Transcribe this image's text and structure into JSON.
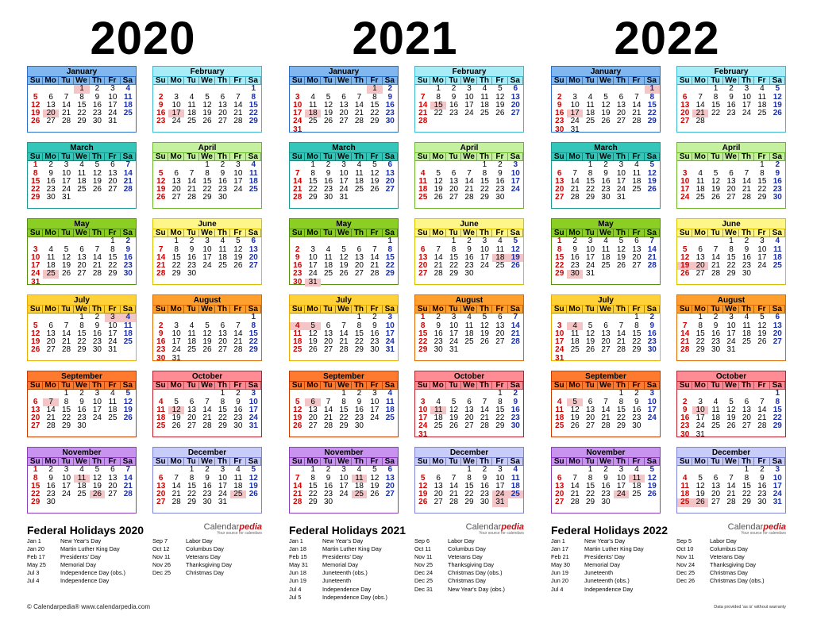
{
  "years": [
    "2020",
    "2021",
    "2022"
  ],
  "weekday_labels": [
    "Su",
    "Mo",
    "Tu",
    "We",
    "Th",
    "Fr",
    "Sa"
  ],
  "month_names": [
    "January",
    "February",
    "March",
    "April",
    "May",
    "June",
    "July",
    "August",
    "September",
    "October",
    "November",
    "December"
  ],
  "theme": [
    {
      "border": "#2b6fc9",
      "head": "#7fb7ee"
    },
    {
      "border": "#3fb8d2",
      "head": "#a8ecf7"
    },
    {
      "border": "#1c9a94",
      "head": "#34c6b8"
    },
    {
      "border": "#6cb52a",
      "head": "#c5f0a0"
    },
    {
      "border": "#559212",
      "head": "#8ccf24"
    },
    {
      "border": "#d8c100",
      "head": "#fff68a"
    },
    {
      "border": "#e8ad00",
      "head": "#ffd23a"
    },
    {
      "border": "#dc6a00",
      "head": "#ff9f2e"
    },
    {
      "border": "#cc3a00",
      "head": "#ff7a2e"
    },
    {
      "border": "#bd1e2a",
      "head": "#ff8c94"
    },
    {
      "border": "#8b3fb8",
      "head": "#c793ef"
    },
    {
      "border": "#7c82d8",
      "head": "#c8ccf8"
    }
  ],
  "calendars": [
    {
      "year": "2020",
      "months": [
        {
          "start": 3,
          "days": 31,
          "holidays": [
            1,
            20
          ]
        },
        {
          "start": 6,
          "days": 29,
          "holidays": [
            17
          ]
        },
        {
          "start": 0,
          "days": 31,
          "holidays": []
        },
        {
          "start": 3,
          "days": 30,
          "holidays": []
        },
        {
          "start": 5,
          "days": 31,
          "holidays": [
            25
          ]
        },
        {
          "start": 1,
          "days": 30,
          "holidays": []
        },
        {
          "start": 3,
          "days": 31,
          "holidays": [
            3,
            4
          ]
        },
        {
          "start": 6,
          "days": 31,
          "holidays": []
        },
        {
          "start": 2,
          "days": 30,
          "holidays": [
            7
          ]
        },
        {
          "start": 4,
          "days": 31,
          "holidays": [
            12
          ]
        },
        {
          "start": 0,
          "days": 30,
          "holidays": [
            11,
            26
          ]
        },
        {
          "start": 2,
          "days": 31,
          "holidays": [
            25
          ]
        }
      ]
    },
    {
      "year": "2021",
      "months": [
        {
          "start": 5,
          "days": 31,
          "holidays": [
            1,
            18
          ]
        },
        {
          "start": 1,
          "days": 28,
          "holidays": [
            15
          ]
        },
        {
          "start": 1,
          "days": 31,
          "holidays": []
        },
        {
          "start": 4,
          "days": 30,
          "holidays": []
        },
        {
          "start": 6,
          "days": 31,
          "holidays": [
            31
          ]
        },
        {
          "start": 2,
          "days": 30,
          "holidays": [
            18,
            19
          ]
        },
        {
          "start": 4,
          "days": 31,
          "holidays": [
            4,
            5
          ]
        },
        {
          "start": 0,
          "days": 31,
          "holidays": []
        },
        {
          "start": 3,
          "days": 30,
          "holidays": [
            6
          ]
        },
        {
          "start": 5,
          "days": 31,
          "holidays": [
            11
          ]
        },
        {
          "start": 1,
          "days": 30,
          "holidays": [
            11,
            25
          ]
        },
        {
          "start": 3,
          "days": 31,
          "holidays": [
            24,
            25,
            31
          ]
        }
      ]
    },
    {
      "year": "2022",
      "months": [
        {
          "start": 6,
          "days": 31,
          "holidays": [
            1,
            17
          ]
        },
        {
          "start": 2,
          "days": 28,
          "holidays": [
            21
          ]
        },
        {
          "start": 2,
          "days": 31,
          "holidays": []
        },
        {
          "start": 5,
          "days": 30,
          "holidays": []
        },
        {
          "start": 0,
          "days": 31,
          "holidays": [
            30
          ]
        },
        {
          "start": 3,
          "days": 30,
          "holidays": [
            19,
            20
          ]
        },
        {
          "start": 5,
          "days": 31,
          "holidays": [
            4
          ]
        },
        {
          "start": 1,
          "days": 31,
          "holidays": []
        },
        {
          "start": 4,
          "days": 30,
          "holidays": [
            5
          ]
        },
        {
          "start": 6,
          "days": 31,
          "holidays": [
            10
          ]
        },
        {
          "start": 2,
          "days": 30,
          "holidays": [
            11,
            24
          ]
        },
        {
          "start": 4,
          "days": 31,
          "holidays": [
            25,
            26
          ]
        }
      ]
    }
  ],
  "federal": [
    {
      "title": "Federal Holidays 2020",
      "left": [
        [
          "Jan 1",
          "New Year's Day"
        ],
        [
          "Jan 20",
          "Martin Luther King Day"
        ],
        [
          "Feb 17",
          "Presidents' Day"
        ],
        [
          "May 25",
          "Memorial Day"
        ],
        [
          "Jul 3",
          "Independence Day (obs.)"
        ],
        [
          "Jul 4",
          "Independence Day"
        ]
      ],
      "right": [
        [
          "Sep 7",
          "Labor Day"
        ],
        [
          "Oct 12",
          "Columbus Day"
        ],
        [
          "Nov 11",
          "Veterans Day"
        ],
        [
          "Nov 26",
          "Thanksgiving Day"
        ],
        [
          "Dec 25",
          "Christmas Day"
        ]
      ]
    },
    {
      "title": "Federal Holidays 2021",
      "left": [
        [
          "Jan 1",
          "New Year's Day"
        ],
        [
          "Jan 18",
          "Martin Luther King Day"
        ],
        [
          "Feb 15",
          "Presidents' Day"
        ],
        [
          "May 31",
          "Memorial Day"
        ],
        [
          "Jun 18",
          "Juneteenth (obs.)"
        ],
        [
          "Jun 19",
          "Juneteenth"
        ],
        [
          "Jul 4",
          "Independence Day"
        ],
        [
          "Jul 5",
          "Independence Day (obs.)"
        ]
      ],
      "right": [
        [
          "Sep 6",
          "Labor Day"
        ],
        [
          "Oct 11",
          "Columbus Day"
        ],
        [
          "Nov 11",
          "Veterans Day"
        ],
        [
          "Nov 25",
          "Thanksgiving Day"
        ],
        [
          "Dec 24",
          "Christmas Day (obs.)"
        ],
        [
          "Dec 25",
          "Christmas Day"
        ],
        [
          "Dec 31",
          "New Year's Day (obs.)"
        ]
      ]
    },
    {
      "title": "Federal Holidays 2022",
      "left": [
        [
          "Jan 1",
          "New Year's Day"
        ],
        [
          "Jan 17",
          "Martin Luther King Day"
        ],
        [
          "Feb 21",
          "Presidents' Day"
        ],
        [
          "May 30",
          "Memorial Day"
        ],
        [
          "Jun 19",
          "Juneteenth"
        ],
        [
          "Jun 20",
          "Juneteenth (obs.)"
        ],
        [
          "Jul 4",
          "Independence Day"
        ]
      ],
      "right": [
        [
          "Sep 5",
          "Labor Day"
        ],
        [
          "Oct 10",
          "Columbus Day"
        ],
        [
          "Nov 11",
          "Veterans Day"
        ],
        [
          "Nov 24",
          "Thanksgiving Day"
        ],
        [
          "Dec 25",
          "Christmas Day"
        ],
        [
          "Dec 26",
          "Christmas Day (obs.)"
        ]
      ]
    }
  ],
  "brand": {
    "part1": "Calendar",
    "part2": "pedia",
    "tagline": "Your source for calendars"
  },
  "footer": "© Calendarpedia®   www.calendarpedia.com",
  "warranty": "Data provided 'as is' without warranty"
}
